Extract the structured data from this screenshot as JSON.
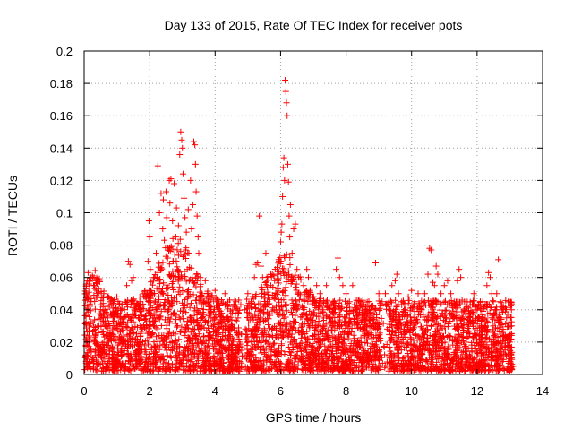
{
  "chart_data": {
    "type": "scatter",
    "title": "Day 133 of 2015, Rate Of TEC Index for receiver pots",
    "xlabel": "GPS time / hours",
    "ylabel": "ROTI / TECUs",
    "xlim": [
      0,
      14
    ],
    "ylim": [
      0,
      0.2
    ],
    "x_ticks": [
      0,
      2,
      4,
      6,
      8,
      10,
      12,
      14
    ],
    "x_tick_labels": [
      "0",
      "2",
      "4",
      "6",
      "8",
      "10",
      "12",
      "14"
    ],
    "y_ticks": [
      0,
      0.02,
      0.04,
      0.06,
      0.08,
      0.1,
      0.12,
      0.14,
      0.16,
      0.18,
      0.2
    ],
    "y_tick_labels": [
      "0",
      "0.02",
      "0.04",
      "0.06",
      "0.08",
      "0.1",
      "0.12",
      "0.14",
      "0.16",
      "0.18",
      "0.2"
    ],
    "grid": true,
    "marker": "plus",
    "color": "#ff0000",
    "series": [
      {
        "name": "ROTI",
        "points": [
          [
            0.02,
            0.003
          ],
          [
            0.05,
            0.012
          ],
          [
            0.08,
            0.04
          ],
          [
            0.1,
            0.058
          ],
          [
            0.12,
            0.063
          ],
          [
            0.15,
            0.058
          ],
          [
            0.2,
            0.06
          ],
          [
            0.25,
            0.061
          ],
          [
            0.3,
            0.06
          ],
          [
            0.1,
            0.02
          ],
          [
            0.15,
            0.03
          ],
          [
            0.2,
            0.045
          ],
          [
            0.35,
            0.025
          ],
          [
            0.4,
            0.018
          ],
          [
            0.45,
            0.03
          ],
          [
            0.5,
            0.012
          ],
          [
            0.55,
            0.035
          ],
          [
            0.6,
            0.05
          ],
          [
            0.7,
            0.042
          ],
          [
            0.75,
            0.02
          ],
          [
            0.8,
            0.045
          ],
          [
            0.85,
            0.01
          ],
          [
            0.9,
            0.03
          ],
          [
            1.0,
            0.048
          ],
          [
            1.1,
            0.022
          ],
          [
            1.2,
            0.035
          ],
          [
            1.3,
            0.055
          ],
          [
            1.35,
            0.07
          ],
          [
            1.4,
            0.068
          ],
          [
            1.45,
            0.058
          ],
          [
            1.5,
            0.06
          ],
          [
            1.55,
            0.04
          ],
          [
            1.6,
            0.025
          ],
          [
            1.7,
            0.045
          ],
          [
            1.8,
            0.05
          ],
          [
            1.9,
            0.03
          ],
          [
            1.95,
            0.07
          ],
          [
            1.98,
            0.095
          ],
          [
            2.0,
            0.085
          ],
          [
            2.02,
            0.065
          ],
          [
            2.05,
            0.05
          ],
          [
            2.1,
            0.035
          ],
          [
            2.15,
            0.06
          ],
          [
            2.2,
            0.075
          ],
          [
            2.25,
            0.129
          ],
          [
            2.3,
            0.1
          ],
          [
            2.35,
            0.112
          ],
          [
            2.4,
            0.09
          ],
          [
            2.42,
            0.108
          ],
          [
            2.45,
            0.083
          ],
          [
            2.5,
            0.113
          ],
          [
            2.52,
            0.097
          ],
          [
            2.55,
            0.072
          ],
          [
            2.6,
            0.12
          ],
          [
            2.62,
            0.106
          ],
          [
            2.65,
            0.121
          ],
          [
            2.7,
            0.095
          ],
          [
            2.72,
            0.07
          ],
          [
            2.75,
            0.118
          ],
          [
            2.8,
            0.085
          ],
          [
            2.82,
            0.103
          ],
          [
            2.85,
            0.065
          ],
          [
            2.88,
            0.092
          ],
          [
            2.9,
            0.06
          ],
          [
            2.92,
            0.136
          ],
          [
            2.95,
            0.15
          ],
          [
            2.98,
            0.145
          ],
          [
            3.0,
            0.14
          ],
          [
            3.02,
            0.124
          ],
          [
            3.05,
            0.109
          ],
          [
            3.08,
            0.097
          ],
          [
            3.1,
            0.077
          ],
          [
            3.12,
            0.088
          ],
          [
            3.15,
            0.065
          ],
          [
            3.18,
            0.102
          ],
          [
            3.2,
            0.075
          ],
          [
            3.25,
            0.12
          ],
          [
            3.28,
            0.09
          ],
          [
            3.3,
            0.06
          ],
          [
            3.32,
            0.105
          ],
          [
            3.35,
            0.144
          ],
          [
            3.38,
            0.142
          ],
          [
            3.4,
            0.13
          ],
          [
            3.42,
            0.113
          ],
          [
            3.45,
            0.098
          ],
          [
            3.48,
            0.085
          ],
          [
            3.5,
            0.075
          ],
          [
            3.55,
            0.06
          ],
          [
            3.6,
            0.05
          ],
          [
            3.65,
            0.045
          ],
          [
            3.7,
            0.058
          ],
          [
            3.8,
            0.04
          ],
          [
            3.9,
            0.03
          ],
          [
            4.0,
            0.052
          ],
          [
            4.1,
            0.045
          ],
          [
            4.2,
            0.038
          ],
          [
            4.3,
            0.05
          ],
          [
            4.4,
            0.042
          ],
          [
            4.5,
            0.03
          ],
          [
            4.6,
            0.046
          ],
          [
            4.7,
            0.035
          ],
          [
            4.8,
            0.025
          ],
          [
            4.9,
            0.04
          ],
          [
            5.0,
            0.05
          ],
          [
            5.1,
            0.045
          ],
          [
            5.2,
            0.06
          ],
          [
            5.25,
            0.068
          ],
          [
            5.3,
            0.069
          ],
          [
            5.35,
            0.098
          ],
          [
            5.4,
            0.067
          ],
          [
            5.45,
            0.06
          ],
          [
            5.5,
            0.05
          ],
          [
            5.55,
            0.075
          ],
          [
            5.6,
            0.045
          ],
          [
            5.7,
            0.055
          ],
          [
            5.8,
            0.04
          ],
          [
            5.85,
            0.05
          ],
          [
            5.9,
            0.062
          ],
          [
            5.95,
            0.07
          ],
          [
            6.0,
            0.082
          ],
          [
            6.02,
            0.088
          ],
          [
            6.04,
            0.093
          ],
          [
            6.06,
            0.11
          ],
          [
            6.08,
            0.128
          ],
          [
            6.1,
            0.134
          ],
          [
            6.12,
            0.12
          ],
          [
            6.14,
            0.182
          ],
          [
            6.16,
            0.175
          ],
          [
            6.18,
            0.168
          ],
          [
            6.2,
            0.16
          ],
          [
            6.22,
            0.13
          ],
          [
            6.24,
            0.119
          ],
          [
            6.26,
            0.098
          ],
          [
            6.28,
            0.085
          ],
          [
            6.3,
            0.105
          ],
          [
            6.35,
            0.075
          ],
          [
            6.4,
            0.09
          ],
          [
            6.45,
            0.093
          ],
          [
            6.5,
            0.065
          ],
          [
            6.55,
            0.06
          ],
          [
            6.6,
            0.048
          ],
          [
            6.7,
            0.055
          ],
          [
            6.8,
            0.065
          ],
          [
            6.85,
            0.06
          ],
          [
            6.9,
            0.052
          ],
          [
            7.0,
            0.045
          ],
          [
            7.1,
            0.055
          ],
          [
            7.2,
            0.05
          ],
          [
            7.3,
            0.04
          ],
          [
            7.4,
            0.055
          ],
          [
            7.5,
            0.035
          ],
          [
            7.6,
            0.045
          ],
          [
            7.7,
            0.065
          ],
          [
            7.75,
            0.072
          ],
          [
            7.8,
            0.06
          ],
          [
            7.9,
            0.055
          ],
          [
            8.0,
            0.05
          ],
          [
            8.1,
            0.045
          ],
          [
            8.2,
            0.055
          ],
          [
            8.3,
            0.04
          ],
          [
            8.4,
            0.045
          ],
          [
            8.5,
            0.035
          ],
          [
            8.6,
            0.042
          ],
          [
            8.7,
            0.03
          ],
          [
            8.8,
            0.04
          ],
          [
            8.9,
            0.069
          ],
          [
            9.0,
            0.05
          ],
          [
            9.1,
            0.045
          ],
          [
            9.2,
            0.05
          ],
          [
            9.3,
            0.042
          ],
          [
            9.4,
            0.055
          ],
          [
            9.5,
            0.058
          ],
          [
            9.55,
            0.062
          ],
          [
            9.6,
            0.05
          ],
          [
            9.7,
            0.045
          ],
          [
            9.8,
            0.04
          ],
          [
            9.9,
            0.048
          ],
          [
            10.0,
            0.052
          ],
          [
            10.1,
            0.045
          ],
          [
            10.2,
            0.05
          ],
          [
            10.3,
            0.04
          ],
          [
            10.4,
            0.05
          ],
          [
            10.5,
            0.062
          ],
          [
            10.55,
            0.078
          ],
          [
            10.6,
            0.077
          ],
          [
            10.65,
            0.057
          ],
          [
            10.7,
            0.055
          ],
          [
            10.75,
            0.067
          ],
          [
            10.8,
            0.062
          ],
          [
            10.9,
            0.05
          ],
          [
            11.0,
            0.055
          ],
          [
            11.1,
            0.058
          ],
          [
            11.2,
            0.05
          ],
          [
            11.3,
            0.045
          ],
          [
            11.4,
            0.058
          ],
          [
            11.45,
            0.065
          ],
          [
            11.5,
            0.06
          ],
          [
            11.6,
            0.04
          ],
          [
            11.7,
            0.045
          ],
          [
            11.8,
            0.038
          ],
          [
            11.9,
            0.05
          ],
          [
            12.0,
            0.04
          ],
          [
            12.1,
            0.045
          ],
          [
            12.2,
            0.042
          ],
          [
            12.3,
            0.055
          ],
          [
            12.35,
            0.063
          ],
          [
            12.4,
            0.06
          ],
          [
            12.45,
            0.05
          ],
          [
            12.5,
            0.045
          ],
          [
            12.55,
            0.04
          ],
          [
            12.6,
            0.05
          ],
          [
            12.65,
            0.071
          ],
          [
            12.7,
            0.045
          ],
          [
            12.75,
            0.04
          ],
          [
            12.8,
            0.042
          ],
          [
            12.9,
            0.035
          ],
          [
            12.95,
            0.045
          ],
          [
            13.0,
            0.02
          ],
          [
            13.05,
            0.04
          ],
          [
            13.1,
            0.005
          ]
        ]
      }
    ]
  }
}
